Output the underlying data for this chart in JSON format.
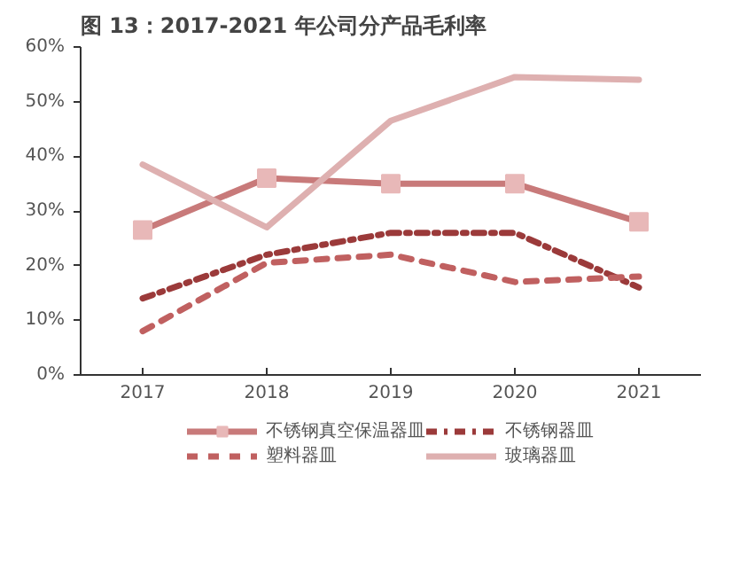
{
  "chart_data": {
    "type": "line",
    "title": "图 13：2017-2021 年公司分产品毛利率",
    "categories": [
      "2017",
      "2018",
      "2019",
      "2020",
      "2021"
    ],
    "ylim": [
      0,
      60
    ],
    "yticks": [
      {
        "value": 0,
        "label": "0%"
      },
      {
        "value": 10,
        "label": "10%"
      },
      {
        "value": 20,
        "label": "20%"
      },
      {
        "value": 30,
        "label": "30%"
      },
      {
        "value": 40,
        "label": "40%"
      },
      {
        "value": 50,
        "label": "50%"
      },
      {
        "value": 60,
        "label": "60%"
      }
    ],
    "grid": false,
    "legend": "bottom",
    "series": [
      {
        "name": "不锈钢真空保温器皿",
        "color": "#c87a7a",
        "marker": "square",
        "line_style": "solid",
        "values": [
          26.5,
          36,
          35,
          35,
          28
        ]
      },
      {
        "name": "不锈钢器皿",
        "color": "#9b3a3a",
        "marker": "none",
        "line_style": "dashdot",
        "values": [
          14,
          22,
          26,
          26,
          16
        ]
      },
      {
        "name": "塑料器皿",
        "color": "#c06060",
        "marker": "none",
        "line_style": "dashed",
        "values": [
          8,
          20.5,
          22,
          17,
          18
        ]
      },
      {
        "name": "玻璃器皿",
        "color": "#deb0b0",
        "marker": "none",
        "line_style": "solid",
        "values": [
          38.5,
          27,
          46.5,
          54.5,
          54
        ]
      }
    ]
  }
}
